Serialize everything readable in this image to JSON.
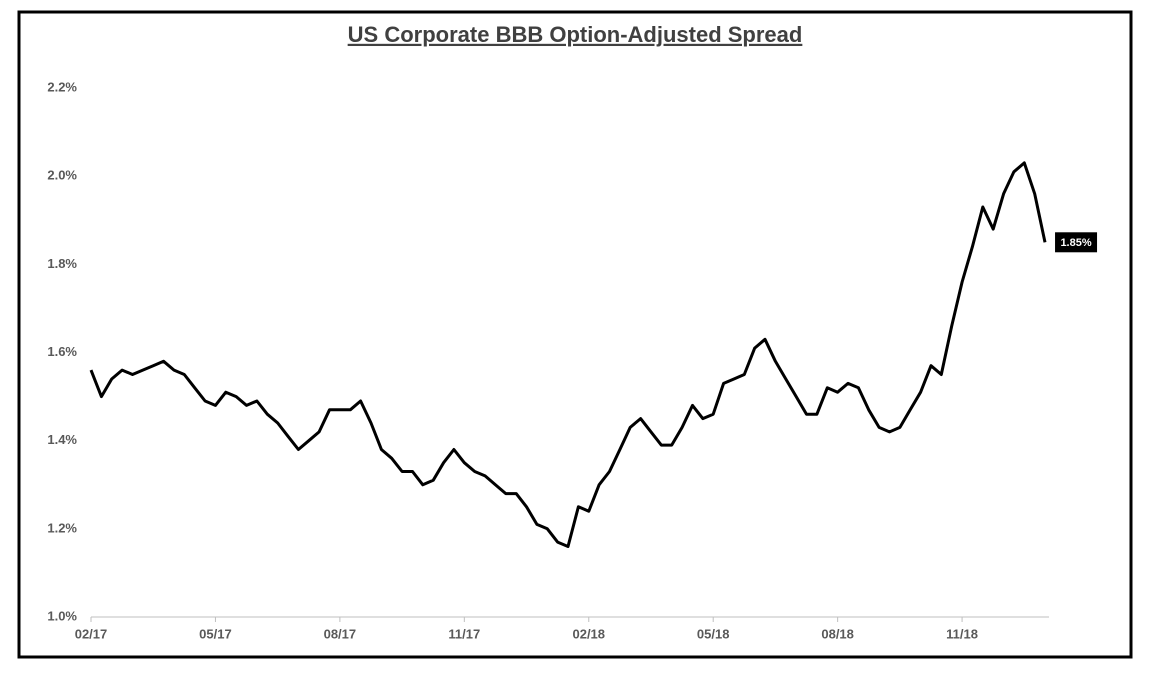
{
  "chart_data": {
    "type": "line",
    "title": "US Corporate BBB Option-Adjusted Spread",
    "categories": [
      "02/17",
      null,
      null,
      null,
      null,
      null,
      null,
      null,
      null,
      null,
      null,
      null,
      "05/17",
      null,
      null,
      null,
      null,
      null,
      null,
      null,
      null,
      null,
      null,
      null,
      "08/17",
      null,
      null,
      null,
      null,
      null,
      null,
      null,
      null,
      null,
      null,
      null,
      "11/17",
      null,
      null,
      null,
      null,
      null,
      null,
      null,
      null,
      null,
      null,
      null,
      "02/18",
      null,
      null,
      null,
      null,
      null,
      null,
      null,
      null,
      null,
      null,
      null,
      "05/18",
      null,
      null,
      null,
      null,
      null,
      null,
      null,
      null,
      null,
      null,
      null,
      "08/18",
      null,
      null,
      null,
      null,
      null,
      null,
      null,
      null,
      null,
      null,
      null,
      "11/18",
      null,
      null,
      null,
      null,
      null,
      null,
      null,
      null
    ],
    "series": [
      {
        "name": "US Corporate BBB Option-Adjusted Spread",
        "color": "#000000",
        "values": [
          1.56,
          1.5,
          1.54,
          1.56,
          1.55,
          1.56,
          1.57,
          1.58,
          1.56,
          1.55,
          1.52,
          1.49,
          1.48,
          1.51,
          1.5,
          1.48,
          1.49,
          1.46,
          1.44,
          1.41,
          1.38,
          1.4,
          1.42,
          1.47,
          1.47,
          1.47,
          1.49,
          1.44,
          1.38,
          1.36,
          1.33,
          1.33,
          1.3,
          1.31,
          1.35,
          1.38,
          1.35,
          1.33,
          1.32,
          1.3,
          1.28,
          1.28,
          1.25,
          1.21,
          1.2,
          1.17,
          1.16,
          1.25,
          1.24,
          1.3,
          1.33,
          1.38,
          1.43,
          1.45,
          1.42,
          1.39,
          1.39,
          1.43,
          1.48,
          1.45,
          1.46,
          1.53,
          1.54,
          1.55,
          1.61,
          1.63,
          1.58,
          1.54,
          1.5,
          1.46,
          1.46,
          1.52,
          1.51,
          1.53,
          1.52,
          1.47,
          1.43,
          1.42,
          1.43,
          1.47,
          1.51,
          1.57,
          1.55,
          1.66,
          1.76,
          1.84,
          1.93,
          1.88,
          1.96,
          2.01,
          2.03,
          1.96,
          1.85
        ],
        "value_labels": [
          null,
          null,
          null,
          null,
          null,
          null,
          null,
          null,
          null,
          null,
          null,
          null,
          null,
          null,
          null,
          null,
          null,
          null,
          null,
          null,
          null,
          null,
          null,
          null,
          null,
          null,
          null,
          null,
          null,
          null,
          null,
          null,
          null,
          null,
          null,
          null,
          null,
          null,
          null,
          null,
          null,
          null,
          null,
          null,
          null,
          null,
          null,
          null,
          null,
          null,
          null,
          null,
          null,
          null,
          null,
          null,
          null,
          null,
          null,
          null,
          null,
          null,
          null,
          null,
          null,
          null,
          null,
          null,
          null,
          null,
          null,
          null,
          null,
          null,
          null,
          null,
          null,
          null,
          null,
          null,
          null,
          null,
          null,
          null,
          null,
          null,
          null,
          null,
          null,
          null,
          null,
          null,
          "1.85%"
        ]
      }
    ],
    "ylim": [
      1.0,
      2.2
    ],
    "yticks": [
      {
        "value": 1.0,
        "label": "1.0%"
      },
      {
        "value": 1.2,
        "label": "1.2%"
      },
      {
        "value": 1.4,
        "label": "1.4%"
      },
      {
        "value": 1.6,
        "label": "1.6%"
      },
      {
        "value": 1.8,
        "label": "1.8%"
      },
      {
        "value": 2.0,
        "label": "2.0%"
      },
      {
        "value": 2.2,
        "label": "2.2%"
      }
    ],
    "grid": false
  }
}
